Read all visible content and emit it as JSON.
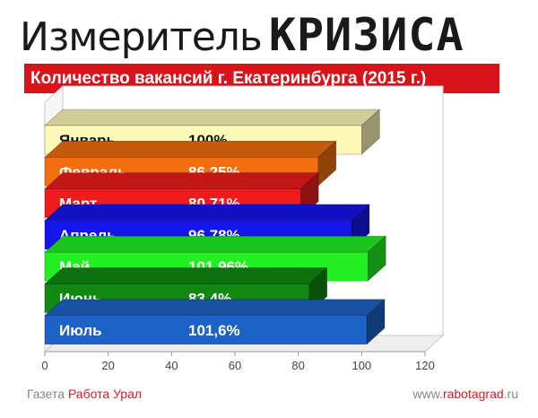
{
  "header": {
    "title_main": "Измеритель",
    "title_emphasis": "КРИЗИСА",
    "subtitle": "Количество вакансий г. Екатеринбурга (2015 г.)"
  },
  "footer": {
    "left_prefix": "Газета ",
    "left_accent": "Работа Урал",
    "right_prefix": "www.",
    "right_accent": "rabotagrad",
    "right_suffix": ".ru"
  },
  "chart_data": {
    "type": "bar",
    "orientation": "horizontal",
    "categories": [
      "Январь",
      "Февраль",
      "Март",
      "Апрель",
      "Май",
      "Июнь",
      "Июль"
    ],
    "values": [
      100,
      86.25,
      80.71,
      96.78,
      101.96,
      83.4,
      101.6
    ],
    "value_labels": [
      "100%",
      "86,25%",
      "80,71%",
      "96,78%",
      "101,96%",
      "83,4%",
      "101,6%"
    ],
    "colors": [
      "#fdf9b8",
      "#f26e0f",
      "#ee1c1c",
      "#1515ee",
      "#22f022",
      "#118811",
      "#1d62c6"
    ],
    "xlim": [
      0,
      120
    ],
    "x_ticks": [
      0,
      20,
      40,
      60,
      80,
      100,
      120
    ],
    "grid": false,
    "legend": "none"
  }
}
